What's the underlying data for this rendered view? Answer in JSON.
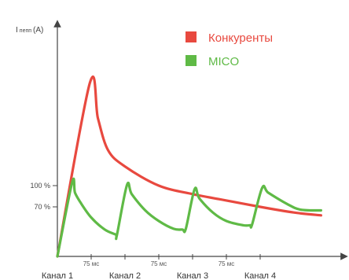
{
  "chart_data": {
    "type": "line",
    "ylabel": "I пепп (A)",
    "ylabel_main": "I",
    "ylabel_sub": "пепп",
    "ylabel_unit": "(A)",
    "yticks": [
      {
        "value": 70,
        "label": "70 %"
      },
      {
        "value": 100,
        "label": "100 %"
      }
    ],
    "ylim": [
      0,
      250
    ],
    "xlim": [
      0,
      390
    ],
    "x_unit": "мс",
    "categories": [
      {
        "x": 0,
        "label": "Канал 1"
      },
      {
        "x": 100,
        "label": "Канал 2"
      },
      {
        "x": 200,
        "label": "Канал 3"
      },
      {
        "x": 300,
        "label": "Канал 4"
      }
    ],
    "interval_labels": [
      {
        "x": 50,
        "label": "75 мс"
      },
      {
        "x": 150,
        "label": "75 мс"
      },
      {
        "x": 250,
        "label": "75 мс"
      }
    ],
    "grid": false,
    "legend_position": "top-right",
    "series": [
      {
        "name": "Конкуренты",
        "color": "#e8493f",
        "points": [
          [
            0,
            0
          ],
          [
            48,
            245
          ],
          [
            60,
            195
          ],
          [
            75,
            150
          ],
          [
            100,
            127
          ],
          [
            150,
            100
          ],
          [
            200,
            88
          ],
          [
            250,
            79
          ],
          [
            300,
            70
          ],
          [
            350,
            62
          ],
          [
            390,
            58
          ]
        ]
      },
      {
        "name": "MICO",
        "color": "#5fba46",
        "points": [
          [
            0,
            0
          ],
          [
            22,
            105
          ],
          [
            26,
            90
          ],
          [
            35,
            75
          ],
          [
            50,
            55
          ],
          [
            70,
            38
          ],
          [
            86,
            31
          ],
          [
            88,
            30
          ],
          [
            103,
            101
          ],
          [
            110,
            88
          ],
          [
            130,
            65
          ],
          [
            150,
            50
          ],
          [
            172,
            39
          ],
          [
            185,
            38
          ],
          [
            190,
            39
          ],
          [
            203,
            95
          ],
          [
            210,
            82
          ],
          [
            230,
            62
          ],
          [
            250,
            50
          ],
          [
            275,
            44
          ],
          [
            285,
            44
          ],
          [
            288,
            45
          ],
          [
            303,
            97
          ],
          [
            312,
            90
          ],
          [
            340,
            74
          ],
          [
            360,
            66
          ],
          [
            390,
            65
          ]
        ]
      }
    ]
  }
}
